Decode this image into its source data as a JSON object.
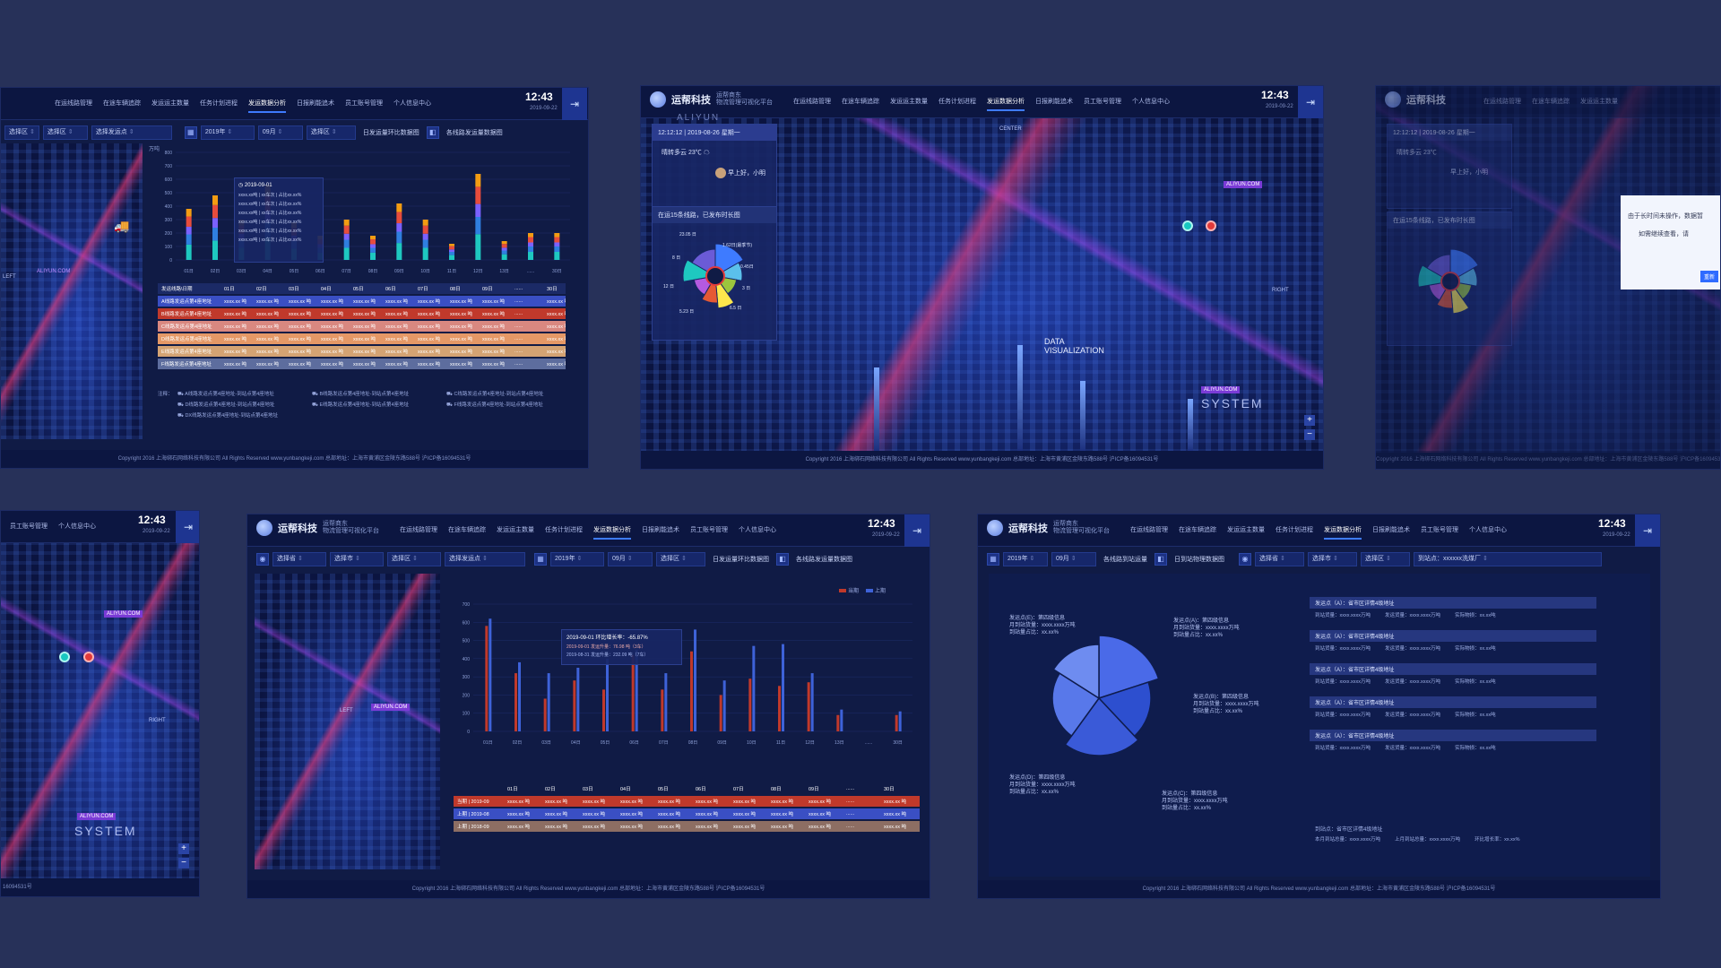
{
  "nav": {
    "brand_name": "运帮科技",
    "brand_sub_1": "运帮商东",
    "brand_sub_2": "物流管理可视化平台",
    "items": [
      "在运线路管理",
      "在途车辆追踪",
      "发运运主数量",
      "任务计划进程",
      "发运数据分析",
      "日报刷能追术",
      "员工账号管理",
      "个人信息中心"
    ],
    "clock": "12:43",
    "date": "2019-09-22",
    "exit_icon": "logout-icon"
  },
  "filters": {
    "province": "选择省",
    "city": "选择市",
    "district": "选择区",
    "origin_point": "选择发运点",
    "year": "2019年",
    "month": "09月",
    "compare_btn": "日发运量环比数据图",
    "compare_chart_btn": "各线路发运量数据图",
    "daily_cargo_btn": "各线路到站运量",
    "daily_chart_btn": "日到站物理数据图",
    "destination": "到站点：xxxxxx洗煤厂"
  },
  "footer": "Copyright 2016 上海绑石网络科技有限公司 All Rights Reserved www.yunbangkeji.com   总部地址：上海市黄浦区金陵东路588号 沪ICP备16094531号",
  "panel1": {
    "tooltip_date": "2019-09-01",
    "tooltip_rows": [
      "xxxx.xx吨 | xx车次 | 占比xx.xx%",
      "xxxx.xx吨 | xx车次 | 占比xx.xx%",
      "xxxx.xx吨 | xx车次 | 占比xx.xx%",
      "xxxx.xx吨 | xx车次 | 占比xx.xx%",
      "xxxx.xx吨 | xx车次 | 占比xx.xx%",
      "xxxx.xx吨 | xx车次 | 占比xx.xx%"
    ],
    "table_header": [
      "发运线路\\日期",
      "01日",
      "02日",
      "03日",
      "04日",
      "05日",
      "06日",
      "07日",
      "08日",
      "09日",
      "......",
      "30日"
    ],
    "table_rows": [
      {
        "name": "A线路发运点第4座地址",
        "cell": "xxxx.xx 吨",
        "color": "#3a4fc4"
      },
      {
        "name": "B线路发运点第4座地址",
        "cell": "xxxx.xx 吨",
        "color": "#c0392b"
      },
      {
        "name": "C线路发运点第4座地址",
        "cell": "xxxx.xx 吨",
        "color": "#d98880"
      },
      {
        "name": "D线路发运点第4座地址",
        "cell": "xxxx.xx 吨",
        "color": "#e59866"
      },
      {
        "name": "E线路发运点第4座地址",
        "cell": "xxxx.xx 吨",
        "color": "#d4a373"
      },
      {
        "name": "F线路发运点第4座地址",
        "cell": "xxxx.xx 吨",
        "color": "#5d6d9e"
      }
    ],
    "notes_label": "注释：",
    "notes": [
      "A线路发运点第4座地址-到站点第4座地址",
      "B线路发运点第4座地址-到站点第4座地址",
      "C线路发运点第4座地址-到站点第4座地址",
      "D线路发运点第4座地址-到站点第4座地址",
      "E线路发运点第4座地址-到站点第4座地址",
      "F线路发运点第4座地址-到站点第4座地址",
      "DX线路发运点第4座地址-到站点第4座地址"
    ],
    "map_label": "ALIYUN.COM",
    "map_left": "LEFT"
  },
  "panel2": {
    "datetime": "12:12:12 | 2019-08-26 星期一",
    "weather": "晴转多云 23℃",
    "greeting": "早上好，小明",
    "lines_title": "在运15条线路，已发布时长图",
    "ring_labels": [
      "23.05 日",
      "1.62日(最季节)",
      "8 日",
      "0.45日",
      "12 日",
      "3 日",
      "5.23 日",
      "6.5 日"
    ],
    "map_center": "CENTER",
    "map_right": "RIGHT",
    "chip_top": "ALIYUN.COM",
    "chip_bottom": "ALIYUN.COM",
    "data_vis": "DATA VISUALIZATION",
    "system": "SYSTEM",
    "aliyun_top": "ALIYUN"
  },
  "panel3": {
    "datetime": "12:12:12 | 2019-08-26 星期一",
    "weather": "晴转多云 23℃",
    "greeting": "早上好，小明",
    "lines_title": "在运15条线路，已发布时长图",
    "dialog_line_1": "由于长时间未操作，数据暂",
    "dialog_line_2": "如需继续查看，请",
    "dialog_btn": "重新"
  },
  "panel4": {
    "chip_top": "ALIYUN.COM",
    "chip_bottom": "ALIYUN.COM",
    "map_right": "RIGHT",
    "system": "SYSTEM",
    "footer_tail": "16094531号"
  },
  "panel5": {
    "y_unit": "万吨",
    "legend_current": "当期",
    "legend_previous": "上期",
    "tooltip_title": "2019-09-01 环比增长率：-65.87%",
    "tooltip_row_1": "2019-09-01 发运升量：76.98 吨（3车）",
    "tooltip_row_2": "2019-08-31 发运升量：232.09 吨（7车）",
    "table_header": [
      "01日",
      "02日",
      "03日",
      "04日",
      "05日",
      "06日",
      "07日",
      "08日",
      "09日",
      "......",
      "30日"
    ],
    "table_rows": [
      {
        "name": "当期 | 2019-09",
        "cell": "xxxx.xx 吨",
        "color": "#c0392b"
      },
      {
        "name": "上期 | 2019-08",
        "cell": "xxxx.xx 吨",
        "color": "#3a4fc4"
      },
      {
        "name": "上期 | 2018-09",
        "cell": "xxxx.xx 吨",
        "color": "#8d6e63"
      }
    ],
    "map_chip": "ALIYUN.COM",
    "map_left": "LEFT"
  },
  "panel6": {
    "pie_labels": [
      [
        "发运点(E)：第四级信息",
        "月到站货量：xxxx.xxxx万吨",
        "到站量占比：xx.xx%"
      ],
      [
        "发运点(A)：第四级信息",
        "月到站货量：xxxx.xxxx万吨",
        "到站量占比：xx.xx%"
      ],
      [
        "发运点(B)：第四级信息",
        "月到站货量：xxxx.xxxx万吨",
        "到站量占比：xx.xx%"
      ],
      [
        "发运点(D)：第四级信息",
        "月到站货量：xxxx.xxxx万吨",
        "到站量占比：xx.xx%"
      ],
      [
        "发运点(C)：第四级信息",
        "月到站货量：xxxx.xxxx万吨",
        "到站量占比：xx.xx%"
      ]
    ],
    "info_head": "发运点（A）：省市区详情4级地址",
    "info_cols": [
      "到站货量：xxxx.xxxx万吨",
      "发运货量：xxxx.xxxx万吨",
      "实际物损：xx.xx吨"
    ],
    "summary_head": "到站点：省市区详情4级地址",
    "summary_cols": [
      "本月到站总量：xxxx.xxxx万吨",
      "上月到站总量：xxxx.xxxx万吨",
      "环比增长率：xx.xx%"
    ]
  },
  "chart_data": [
    {
      "type": "bar",
      "title": "",
      "ylabel": "万吨",
      "ylim": [
        0,
        800
      ],
      "categories": [
        "01日",
        "02日",
        "03日",
        "04日",
        "05日",
        "06日",
        "07日",
        "08日",
        "09日",
        "10日",
        "11日",
        "12日",
        "13日",
        "......",
        "30日"
      ],
      "stacked": true,
      "totals": [
        380,
        480,
        300,
        560,
        280,
        180,
        300,
        180,
        420,
        300,
        120,
        640,
        140,
        200,
        200
      ]
    },
    {
      "type": "bar",
      "title": "",
      "ylabel": "万吨",
      "ylim": [
        0,
        700
      ],
      "categories": [
        "01日",
        "02日",
        "03日",
        "04日",
        "05日",
        "06日",
        "07日",
        "08日",
        "09日",
        "10日",
        "11日",
        "12日",
        "13日",
        "......",
        "30日"
      ],
      "series": [
        {
          "name": "当期",
          "values": [
            580,
            320,
            180,
            280,
            230,
            420,
            230,
            440,
            200,
            290,
            250,
            270,
            90,
            0,
            90
          ]
        },
        {
          "name": "上期",
          "values": [
            620,
            380,
            320,
            350,
            400,
            450,
            320,
            560,
            280,
            470,
            480,
            320,
            120,
            0,
            110
          ]
        }
      ]
    },
    {
      "type": "pie",
      "title": "",
      "labels": [
        "发运点(A)",
        "发运点(B)",
        "发运点(C)",
        "发运点(D)",
        "发运点(E)"
      ],
      "values": [
        20,
        18,
        22,
        24,
        16
      ]
    }
  ],
  "colors": {
    "accent": "#3e7bff",
    "bg": "#273159",
    "panel": "#101b45",
    "bar_current": "#c0392b",
    "bar_previous": "#3e62d8",
    "stack": [
      "#1ec8c0",
      "#2f7fe0",
      "#7b61ff",
      "#e74c3c",
      "#f39c12"
    ]
  }
}
